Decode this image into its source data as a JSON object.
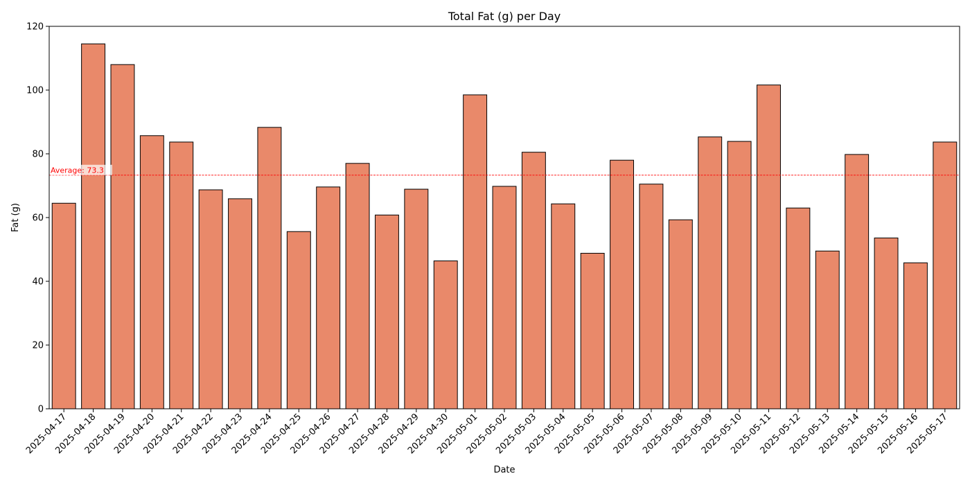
{
  "chart_data": {
    "type": "bar",
    "title": "Total Fat (g) per Day",
    "xlabel": "Date",
    "ylabel": "Fat (g)",
    "ylim": [
      0,
      120
    ],
    "yticks": [
      0,
      20,
      40,
      60,
      80,
      100,
      120
    ],
    "grid": false,
    "legend": false,
    "bar_color": "#e9896a",
    "bar_edge_color": "#000000",
    "categories": [
      "2025-04-17",
      "2025-04-18",
      "2025-04-19",
      "2025-04-20",
      "2025-04-21",
      "2025-04-22",
      "2025-04-23",
      "2025-04-24",
      "2025-04-25",
      "2025-04-26",
      "2025-04-27",
      "2025-04-28",
      "2025-04-29",
      "2025-04-30",
      "2025-05-01",
      "2025-05-02",
      "2025-05-03",
      "2025-05-04",
      "2025-05-05",
      "2025-05-06",
      "2025-05-07",
      "2025-05-08",
      "2025-05-09",
      "2025-05-10",
      "2025-05-11",
      "2025-05-12",
      "2025-05-13",
      "2025-05-14",
      "2025-05-15",
      "2025-05-16",
      "2025-05-17"
    ],
    "values": [
      64.5,
      114.5,
      108.0,
      85.7,
      83.7,
      68.7,
      65.9,
      88.3,
      55.6,
      69.6,
      77.0,
      60.8,
      68.9,
      46.4,
      98.5,
      69.8,
      80.5,
      64.3,
      48.8,
      78.0,
      70.5,
      59.3,
      85.3,
      83.9,
      101.6,
      63.0,
      49.5,
      79.8,
      53.6,
      45.8,
      83.7
    ],
    "reference_line": {
      "value": 73.3,
      "label": "Average: 73.3",
      "color": "#ff0000",
      "style": "dashed"
    }
  }
}
